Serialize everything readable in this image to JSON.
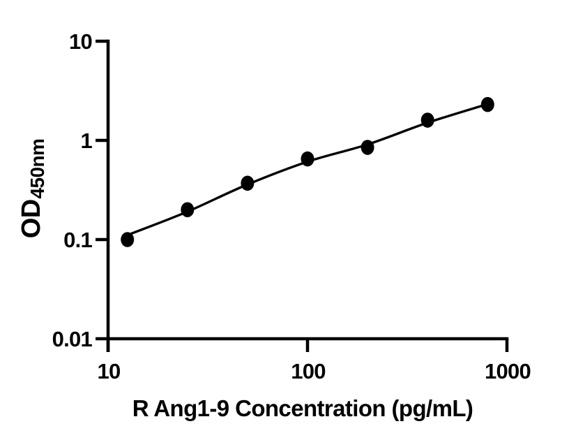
{
  "figure": {
    "background": "#ffffff",
    "ink_color": "#000000"
  },
  "chart_data": {
    "type": "scatter",
    "title": "",
    "xlabel": "R Ang1-9 Concentration (pg/mL)",
    "ylabel": "OD",
    "ylabel_subscript": "450nm",
    "x_scale": "log",
    "y_scale": "log",
    "xlim": [
      10,
      1000
    ],
    "ylim": [
      0.01,
      10
    ],
    "x_ticks": [
      10,
      100,
      1000
    ],
    "x_tick_labels": [
      "10",
      "100",
      "1000"
    ],
    "y_ticks": [
      10,
      1,
      0.1,
      0.01
    ],
    "y_tick_labels": [
      "10",
      "1",
      "0.1",
      "0.01"
    ],
    "grid": false,
    "legend": false,
    "series": [
      {
        "name": "standard-points",
        "kind": "scatter",
        "marker": "filled-ellipse",
        "color": "#000000",
        "x": [
          12.5,
          25,
          50,
          100,
          200,
          400,
          800
        ],
        "y": [
          0.1,
          0.2,
          0.37,
          0.65,
          0.85,
          1.6,
          2.3
        ]
      },
      {
        "name": "fitted-curve",
        "kind": "line",
        "color": "#000000",
        "x": [
          13.1,
          24.8,
          49.3,
          100,
          200,
          397,
          787
        ],
        "y": [
          0.115,
          0.19,
          0.355,
          0.61,
          0.91,
          1.5,
          2.3
        ]
      }
    ]
  }
}
